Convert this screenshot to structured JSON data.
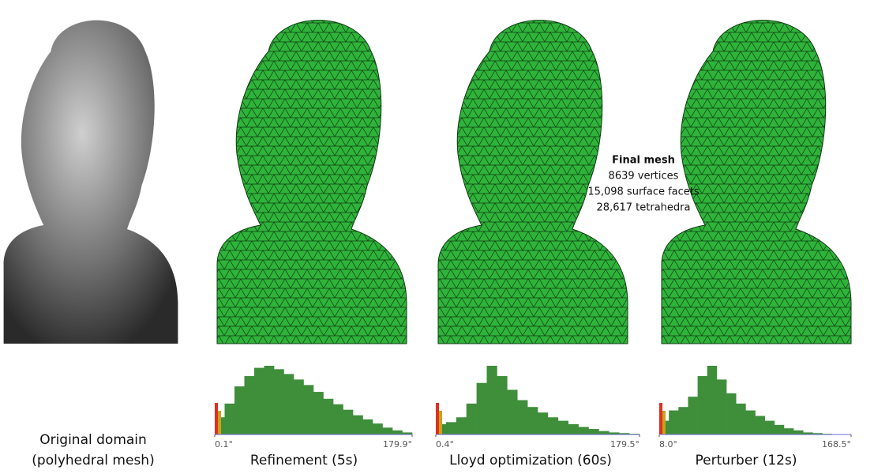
{
  "panels": [
    {
      "caption": [
        "Original domain",
        "(polyhedral mesh)"
      ]
    },
    {
      "caption": [
        "Refinement (5s)"
      ]
    },
    {
      "caption": [
        "Lloyd optimization (60s)"
      ]
    },
    {
      "caption": [
        "Perturber (12s)"
      ]
    }
  ],
  "final_mesh": {
    "title": "Final mesh",
    "lines": [
      "8639 vertices",
      "15,098 surface facets",
      "28,617 tetrahedra"
    ]
  },
  "chart_data": [
    {
      "type": "histogram",
      "color": "#3e8e3a",
      "xlim": [
        0.1,
        179.9
      ],
      "xticks": [
        {
          "value": 0.1,
          "label": "0.1°"
        },
        {
          "value": 179.9,
          "label": "179.9°"
        }
      ],
      "values": [
        25,
        45,
        70,
        85,
        97,
        100,
        95,
        88,
        80,
        72,
        62,
        52,
        44,
        36,
        28,
        22,
        16,
        10,
        6,
        3
      ]
    },
    {
      "type": "histogram",
      "color": "#3e8e3a",
      "xlim": [
        0.4,
        179.5
      ],
      "xticks": [
        {
          "value": 0.4,
          "label": "0.4°"
        },
        {
          "value": 179.5,
          "label": "179.5°"
        }
      ],
      "values": [
        15,
        18,
        25,
        45,
        75,
        100,
        85,
        65,
        50,
        40,
        32,
        25,
        20,
        15,
        11,
        8,
        5,
        3,
        2,
        1
      ]
    },
    {
      "type": "histogram",
      "color": "#3e8e3a",
      "xlim": [
        8.0,
        168.5
      ],
      "xticks": [
        {
          "value": 8.0,
          "label": "8.0°"
        },
        {
          "value": 168.5,
          "label": "168.5°"
        }
      ],
      "values": [
        20,
        35,
        40,
        55,
        85,
        100,
        80,
        60,
        45,
        35,
        27,
        20,
        14,
        9,
        6,
        3,
        2,
        1,
        0,
        0
      ]
    }
  ]
}
